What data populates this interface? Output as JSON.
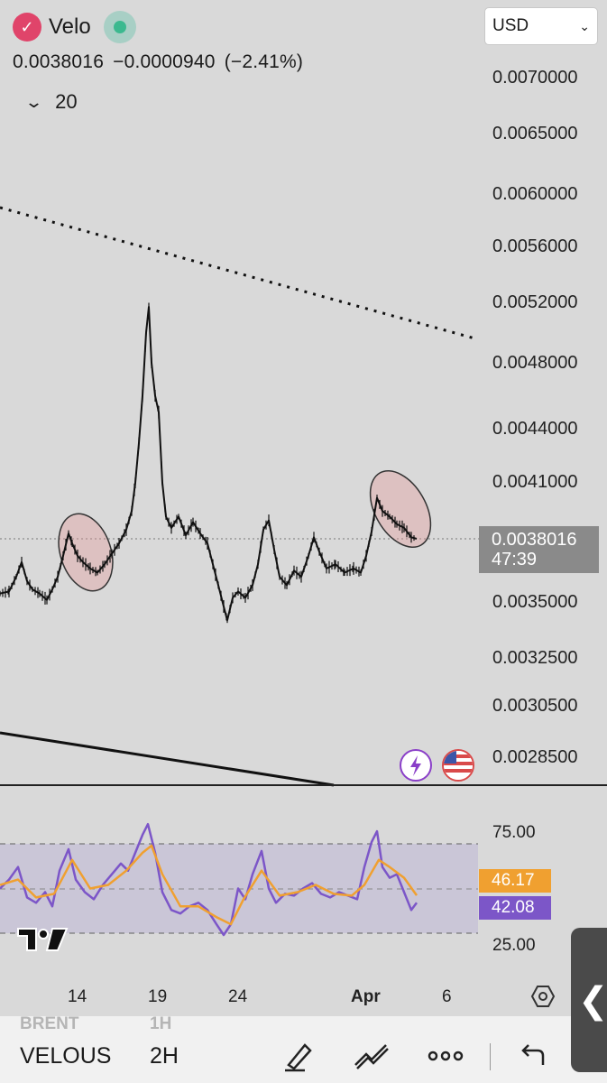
{
  "header": {
    "symbol": "Velo",
    "logo_icon": "velo-logo-icon",
    "market_status_icon": "market-open-icon",
    "last_price": "0.0038016",
    "change": "−0.0000940",
    "change_pct": "(−2.41%)",
    "indicator_length": "20",
    "currency": "USD"
  },
  "price_axis": {
    "labels": [
      "0.0070000",
      "0.0065000",
      "0.0060000",
      "0.0056000",
      "0.0052000",
      "0.0048000",
      "0.0044000",
      "0.0041000",
      "0.0035000",
      "0.0032500",
      "0.0030500",
      "0.0028500"
    ],
    "current_price_label": "0.0038016",
    "countdown": "47:39"
  },
  "rsi": {
    "levels": [
      "75.00",
      "25.00"
    ],
    "ma_value": "46.17",
    "rsi_value": "42.08",
    "ma_color": "#f0a030",
    "rsi_color": "#7c56c8"
  },
  "time_axis": [
    "14",
    "19",
    "24",
    "Apr",
    "6"
  ],
  "bottom_bar": {
    "ghost_symbol": "BRENT",
    "ghost_interval": "1H",
    "symbol": "VELOUS",
    "interval": "2H"
  },
  "chart_data": {
    "type": "candlestick-line",
    "symbol": "Velo",
    "currency": "USD",
    "x_ticks": [
      "14",
      "19",
      "24",
      "Apr",
      "6"
    ],
    "y_ticks": [
      0.007,
      0.0065,
      0.006,
      0.0056,
      0.0052,
      0.0048,
      0.0044,
      0.0041,
      0.0035,
      0.00325,
      0.00305,
      0.00285
    ],
    "last_price": 0.0038016,
    "price_series": [
      {
        "x": 0,
        "y": 0.00354
      },
      {
        "x": 10,
        "y": 0.00355
      },
      {
        "x": 18,
        "y": 0.00362
      },
      {
        "x": 24,
        "y": 0.00369
      },
      {
        "x": 30,
        "y": 0.0036
      },
      {
        "x": 36,
        "y": 0.00356
      },
      {
        "x": 44,
        "y": 0.00354
      },
      {
        "x": 52,
        "y": 0.00351
      },
      {
        "x": 58,
        "y": 0.00356
      },
      {
        "x": 64,
        "y": 0.00362
      },
      {
        "x": 70,
        "y": 0.00372
      },
      {
        "x": 76,
        "y": 0.00383
      },
      {
        "x": 80,
        "y": 0.00378
      },
      {
        "x": 86,
        "y": 0.00372
      },
      {
        "x": 92,
        "y": 0.00369
      },
      {
        "x": 100,
        "y": 0.00366
      },
      {
        "x": 108,
        "y": 0.00364
      },
      {
        "x": 116,
        "y": 0.00368
      },
      {
        "x": 124,
        "y": 0.00373
      },
      {
        "x": 132,
        "y": 0.00378
      },
      {
        "x": 140,
        "y": 0.00385
      },
      {
        "x": 146,
        "y": 0.00395
      },
      {
        "x": 150,
        "y": 0.0041
      },
      {
        "x": 154,
        "y": 0.00432
      },
      {
        "x": 158,
        "y": 0.0046
      },
      {
        "x": 162,
        "y": 0.005
      },
      {
        "x": 165,
        "y": 0.00517
      },
      {
        "x": 168,
        "y": 0.0048
      },
      {
        "x": 172,
        "y": 0.0046
      },
      {
        "x": 176,
        "y": 0.0045
      },
      {
        "x": 180,
        "y": 0.0041
      },
      {
        "x": 184,
        "y": 0.00392
      },
      {
        "x": 190,
        "y": 0.00386
      },
      {
        "x": 198,
        "y": 0.00392
      },
      {
        "x": 206,
        "y": 0.00382
      },
      {
        "x": 214,
        "y": 0.00389
      },
      {
        "x": 222,
        "y": 0.00383
      },
      {
        "x": 230,
        "y": 0.00378
      },
      {
        "x": 236,
        "y": 0.00368
      },
      {
        "x": 242,
        "y": 0.00358
      },
      {
        "x": 248,
        "y": 0.00348
      },
      {
        "x": 252,
        "y": 0.00342
      },
      {
        "x": 258,
        "y": 0.00352
      },
      {
        "x": 264,
        "y": 0.00355
      },
      {
        "x": 272,
        "y": 0.00352
      },
      {
        "x": 280,
        "y": 0.00358
      },
      {
        "x": 286,
        "y": 0.00368
      },
      {
        "x": 292,
        "y": 0.00385
      },
      {
        "x": 298,
        "y": 0.0039
      },
      {
        "x": 304,
        "y": 0.00375
      },
      {
        "x": 310,
        "y": 0.00362
      },
      {
        "x": 318,
        "y": 0.00358
      },
      {
        "x": 326,
        "y": 0.00365
      },
      {
        "x": 334,
        "y": 0.00362
      },
      {
        "x": 342,
        "y": 0.00372
      },
      {
        "x": 348,
        "y": 0.00381
      },
      {
        "x": 354,
        "y": 0.00374
      },
      {
        "x": 362,
        "y": 0.00366
      },
      {
        "x": 372,
        "y": 0.00368
      },
      {
        "x": 382,
        "y": 0.00364
      },
      {
        "x": 392,
        "y": 0.00366
      },
      {
        "x": 400,
        "y": 0.00364
      },
      {
        "x": 406,
        "y": 0.00372
      },
      {
        "x": 412,
        "y": 0.00384
      },
      {
        "x": 418,
        "y": 0.00402
      },
      {
        "x": 424,
        "y": 0.00395
      },
      {
        "x": 432,
        "y": 0.00392
      },
      {
        "x": 440,
        "y": 0.00388
      },
      {
        "x": 448,
        "y": 0.00386
      },
      {
        "x": 456,
        "y": 0.00381
      },
      {
        "x": 462,
        "y": 0.0038016
      }
    ],
    "rsi_series": [
      {
        "x": 0,
        "y": 50
      },
      {
        "x": 10,
        "y": 55
      },
      {
        "x": 20,
        "y": 62
      },
      {
        "x": 30,
        "y": 45
      },
      {
        "x": 40,
        "y": 42
      },
      {
        "x": 50,
        "y": 48
      },
      {
        "x": 58,
        "y": 40
      },
      {
        "x": 66,
        "y": 60
      },
      {
        "x": 76,
        "y": 72
      },
      {
        "x": 84,
        "y": 55
      },
      {
        "x": 94,
        "y": 48
      },
      {
        "x": 104,
        "y": 44
      },
      {
        "x": 114,
        "y": 52
      },
      {
        "x": 124,
        "y": 58
      },
      {
        "x": 134,
        "y": 64
      },
      {
        "x": 142,
        "y": 60
      },
      {
        "x": 150,
        "y": 70
      },
      {
        "x": 158,
        "y": 80
      },
      {
        "x": 164,
        "y": 86
      },
      {
        "x": 172,
        "y": 70
      },
      {
        "x": 180,
        "y": 48
      },
      {
        "x": 190,
        "y": 38
      },
      {
        "x": 200,
        "y": 36
      },
      {
        "x": 210,
        "y": 40
      },
      {
        "x": 220,
        "y": 42
      },
      {
        "x": 230,
        "y": 38
      },
      {
        "x": 240,
        "y": 30
      },
      {
        "x": 248,
        "y": 24
      },
      {
        "x": 256,
        "y": 30
      },
      {
        "x": 264,
        "y": 50
      },
      {
        "x": 272,
        "y": 44
      },
      {
        "x": 280,
        "y": 58
      },
      {
        "x": 290,
        "y": 71
      },
      {
        "x": 298,
        "y": 50
      },
      {
        "x": 306,
        "y": 42
      },
      {
        "x": 316,
        "y": 47
      },
      {
        "x": 326,
        "y": 46
      },
      {
        "x": 336,
        "y": 50
      },
      {
        "x": 346,
        "y": 53
      },
      {
        "x": 356,
        "y": 47
      },
      {
        "x": 366,
        "y": 45
      },
      {
        "x": 376,
        "y": 48
      },
      {
        "x": 386,
        "y": 46
      },
      {
        "x": 396,
        "y": 44
      },
      {
        "x": 404,
        "y": 62
      },
      {
        "x": 412,
        "y": 76
      },
      {
        "x": 418,
        "y": 82
      },
      {
        "x": 424,
        "y": 62
      },
      {
        "x": 432,
        "y": 56
      },
      {
        "x": 440,
        "y": 58
      },
      {
        "x": 448,
        "y": 48
      },
      {
        "x": 456,
        "y": 38
      },
      {
        "x": 462,
        "y": 42.08
      }
    ],
    "rsi_ma_series": [
      {
        "x": 0,
        "y": 52
      },
      {
        "x": 20,
        "y": 55
      },
      {
        "x": 40,
        "y": 45
      },
      {
        "x": 60,
        "y": 47
      },
      {
        "x": 80,
        "y": 66
      },
      {
        "x": 100,
        "y": 50
      },
      {
        "x": 120,
        "y": 52
      },
      {
        "x": 140,
        "y": 60
      },
      {
        "x": 158,
        "y": 70
      },
      {
        "x": 168,
        "y": 74
      },
      {
        "x": 180,
        "y": 58
      },
      {
        "x": 200,
        "y": 40
      },
      {
        "x": 220,
        "y": 40
      },
      {
        "x": 240,
        "y": 34
      },
      {
        "x": 256,
        "y": 30
      },
      {
        "x": 270,
        "y": 44
      },
      {
        "x": 290,
        "y": 60
      },
      {
        "x": 310,
        "y": 46
      },
      {
        "x": 330,
        "y": 48
      },
      {
        "x": 350,
        "y": 52
      },
      {
        "x": 370,
        "y": 47
      },
      {
        "x": 390,
        "y": 46
      },
      {
        "x": 404,
        "y": 52
      },
      {
        "x": 420,
        "y": 66
      },
      {
        "x": 432,
        "y": 62
      },
      {
        "x": 448,
        "y": 56
      },
      {
        "x": 462,
        "y": 46.17
      }
    ],
    "rsi_y_ticks": [
      75,
      25
    ]
  }
}
